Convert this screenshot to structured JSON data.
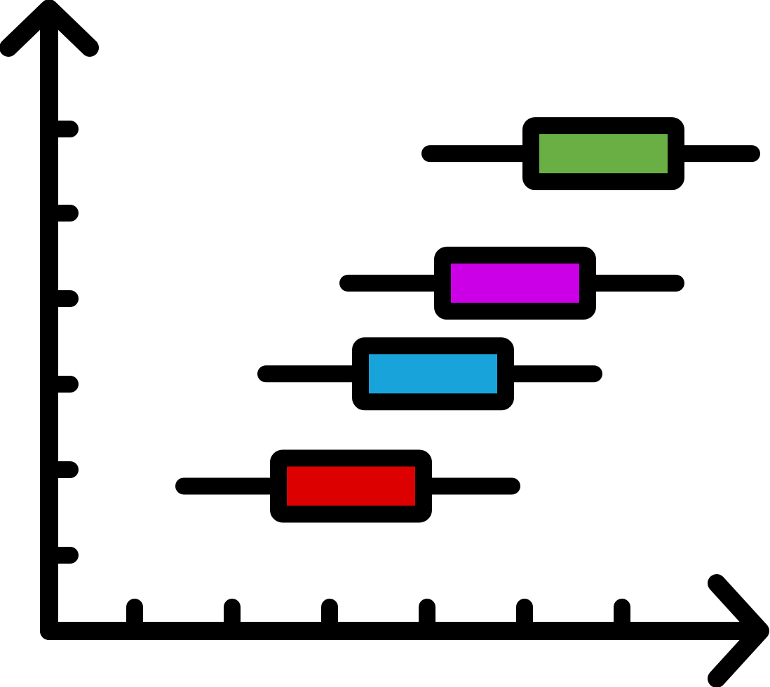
{
  "chart_data": {
    "type": "box",
    "title": "",
    "xlabel": "",
    "ylabel": "",
    "x_ticks": 6,
    "y_ticks": 6,
    "xlim": [
      0,
      1
    ],
    "ylim": [
      0,
      1
    ],
    "grid": false,
    "colors": {
      "stroke": "#000000",
      "background": "#ffffff"
    },
    "series": [
      {
        "color": "#dd0000",
        "whisker_low": 0.1,
        "box_low": 0.25,
        "box_high": 0.48,
        "whisker_high": 0.62,
        "level": 0.16
      },
      {
        "color": "#18a4da",
        "whisker_low": 0.23,
        "box_low": 0.38,
        "box_high": 0.61,
        "whisker_high": 0.75,
        "level": 0.42
      },
      {
        "color": "#cc00e6",
        "whisker_low": 0.36,
        "box_low": 0.51,
        "box_high": 0.74,
        "whisker_high": 0.88,
        "level": 0.63
      },
      {
        "color": "#6aaf44",
        "whisker_low": 0.49,
        "box_low": 0.65,
        "box_high": 0.88,
        "whisker_high": 1.0,
        "level": 0.93
      }
    ]
  }
}
